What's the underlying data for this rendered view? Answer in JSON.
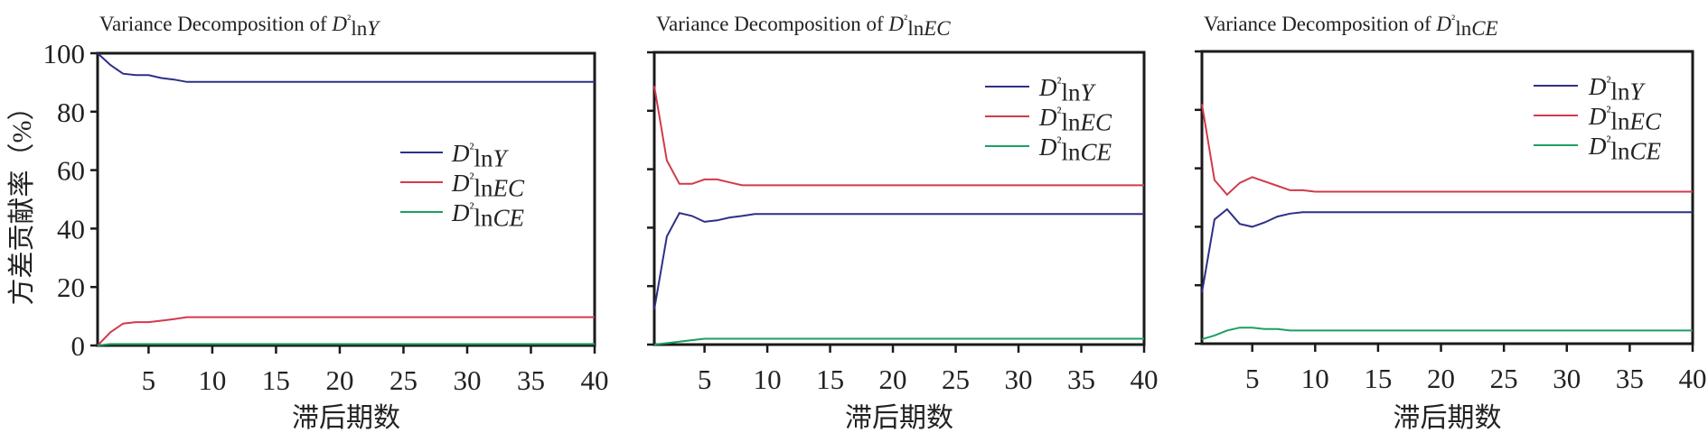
{
  "chart_data": {
    "ylabel": "方差贡献率（%）",
    "colors": {
      "Y": "#2e2f86",
      "EC": "#d23a4a",
      "CE": "#1e9e62",
      "axis": "#1a1a1a"
    },
    "charts": [
      {
        "type": "line",
        "title": "Variance Decomposition of D²lnY",
        "title_var": "Y",
        "xlabel": "滞后期数",
        "xlim": [
          1,
          40
        ],
        "ylim": [
          0,
          100
        ],
        "xticks": [
          5,
          10,
          15,
          20,
          25,
          30,
          35,
          40
        ],
        "yticks": [
          0,
          20,
          40,
          60,
          80,
          100
        ],
        "show_ytick_labels": true,
        "legend_position": "center-right",
        "grid": false,
        "series": [
          {
            "name": "D²lnY",
            "var": "Y",
            "key": "Y",
            "values": [
              100,
              96,
              93,
              92.5,
              92.5,
              91.5,
              91,
              90.2,
              90.2,
              90.2
            ]
          },
          {
            "name": "D²lnEC",
            "var": "EC",
            "key": "EC",
            "values": [
              0,
              4.5,
              7.5,
              8,
              8,
              8.5,
              9,
              9.7,
              9.7,
              9.7
            ]
          },
          {
            "name": "D²lnCE",
            "var": "CE",
            "key": "CE",
            "values": [
              0,
              0.5,
              0.5,
              0.5,
              0.5,
              0.5,
              0.5,
              0.5,
              0.5,
              0.5
            ]
          }
        ]
      },
      {
        "type": "line",
        "title": "Variance Decomposition of D²lnEC",
        "title_var": "EC",
        "xlabel": "滞后期数",
        "xlim": [
          1,
          40
        ],
        "ylim": [
          0,
          100
        ],
        "xticks": [
          5,
          10,
          15,
          20,
          25,
          30,
          35,
          40
        ],
        "yticks": [
          0,
          20,
          40,
          60,
          80,
          100
        ],
        "show_ytick_labels": false,
        "legend_position": "top-right",
        "grid": false,
        "series": [
          {
            "name": "D²lnY",
            "var": "Y",
            "key": "Y",
            "values": [
              12,
              37,
              45,
              44,
              42,
              42.5,
              43.5,
              44,
              44.7,
              44.7
            ]
          },
          {
            "name": "D²lnEC",
            "var": "EC",
            "key": "EC",
            "values": [
              88.5,
              63,
              55,
              55,
              56.5,
              56.5,
              55.5,
              54.5,
              54.5,
              54.5
            ]
          },
          {
            "name": "D²lnCE",
            "var": "CE",
            "key": "CE",
            "values": [
              0,
              0.5,
              1,
              1.5,
              2,
              2,
              2,
              2,
              2,
              2
            ]
          }
        ]
      },
      {
        "type": "line",
        "title": "Variance Decomposition of D²lnCE",
        "title_var": "CE",
        "xlabel": "滞后期数",
        "xlim": [
          1,
          40
        ],
        "ylim": [
          0,
          100
        ],
        "xticks": [
          5,
          10,
          15,
          20,
          25,
          30,
          35,
          40
        ],
        "yticks": [
          0,
          20,
          40,
          60,
          80,
          100
        ],
        "show_ytick_labels": false,
        "legend_position": "top-right",
        "grid": false,
        "series": [
          {
            "name": "D²lnY",
            "var": "Y",
            "key": "Y",
            "values": [
              17.5,
              42.5,
              46,
              41,
              40,
              41.5,
              43.5,
              44.5,
              45,
              45
            ]
          },
          {
            "name": "D²lnEC",
            "var": "EC",
            "key": "EC",
            "values": [
              82,
              56,
              51,
              55,
              57,
              55.5,
              54,
              52.5,
              52.5,
              52
            ]
          },
          {
            "name": "D²lnCE",
            "var": "CE",
            "key": "CE",
            "values": [
              1.5,
              2.8,
              4.5,
              5.5,
              5.5,
              5,
              5,
              4.5,
              4.5,
              4.5
            ]
          }
        ]
      }
    ]
  }
}
